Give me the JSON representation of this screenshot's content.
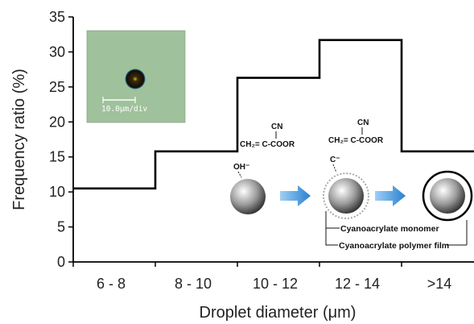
{
  "chart_data": {
    "type": "bar",
    "style": "step-histogram",
    "categories": [
      "6 - 8",
      "8 - 10",
      "10 - 12",
      "12 - 14",
      ">14"
    ],
    "values": [
      10.5,
      15.8,
      26.3,
      31.7,
      15.8
    ],
    "xlabel": "Droplet diameter (μm)",
    "ylabel": "Frequency ratio (%)",
    "ylim": [
      0,
      35
    ],
    "yticks": [
      0,
      5,
      10,
      15,
      20,
      25,
      30,
      35
    ],
    "grid": false,
    "line_color": "#000000"
  },
  "inset": {
    "scale_label": "10.0μm/div",
    "background_color": "#9fc19b"
  },
  "scheme": {
    "hydroxyl": "OH⁻",
    "carbanion": "C⁻",
    "monomer_top_1": "CN",
    "monomer_bottom_1": "CH₂= C-COOR",
    "monomer_top_2": "CN",
    "monomer_bottom_2": "CH₂= C-COOR",
    "label_monomer": "Cyanoacrylate monomer",
    "label_polymer": "Cyanoacrylate polymer film",
    "arrow_color": "#3a8fd6"
  }
}
